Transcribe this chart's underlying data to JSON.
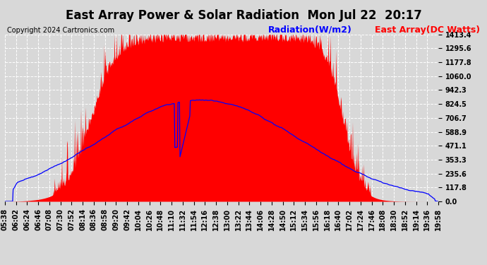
{
  "title": "East Array Power & Solar Radiation  Mon Jul 22  20:17",
  "copyright": "Copyright 2024 Cartronics.com",
  "legend_radiation": "Radiation(W/m2)",
  "legend_east_array": "East Array(DC Watts)",
  "legend_radiation_color": "blue",
  "legend_east_array_color": "red",
  "background_color": "#d8d8d8",
  "plot_bg_color": "#d8d8d8",
  "grid_color": "#ffffff",
  "y_max": 1413.4,
  "y_ticks": [
    0.0,
    117.8,
    235.6,
    353.3,
    471.1,
    588.9,
    706.7,
    824.5,
    942.3,
    1060.0,
    1177.8,
    1295.6,
    1413.4
  ],
  "x_tick_labels": [
    "05:38",
    "06:02",
    "06:24",
    "06:46",
    "07:08",
    "07:30",
    "07:52",
    "08:14",
    "08:36",
    "08:58",
    "09:20",
    "09:42",
    "10:04",
    "10:26",
    "10:48",
    "11:10",
    "11:32",
    "11:54",
    "12:16",
    "12:38",
    "13:00",
    "13:22",
    "13:44",
    "14:06",
    "14:28",
    "14:50",
    "15:12",
    "15:34",
    "15:56",
    "16:18",
    "16:40",
    "17:02",
    "17:24",
    "17:46",
    "18:08",
    "18:30",
    "18:52",
    "19:14",
    "19:36",
    "19:58"
  ],
  "title_fontsize": 12,
  "copyright_fontsize": 7,
  "legend_fontsize": 9,
  "tick_fontsize": 7
}
